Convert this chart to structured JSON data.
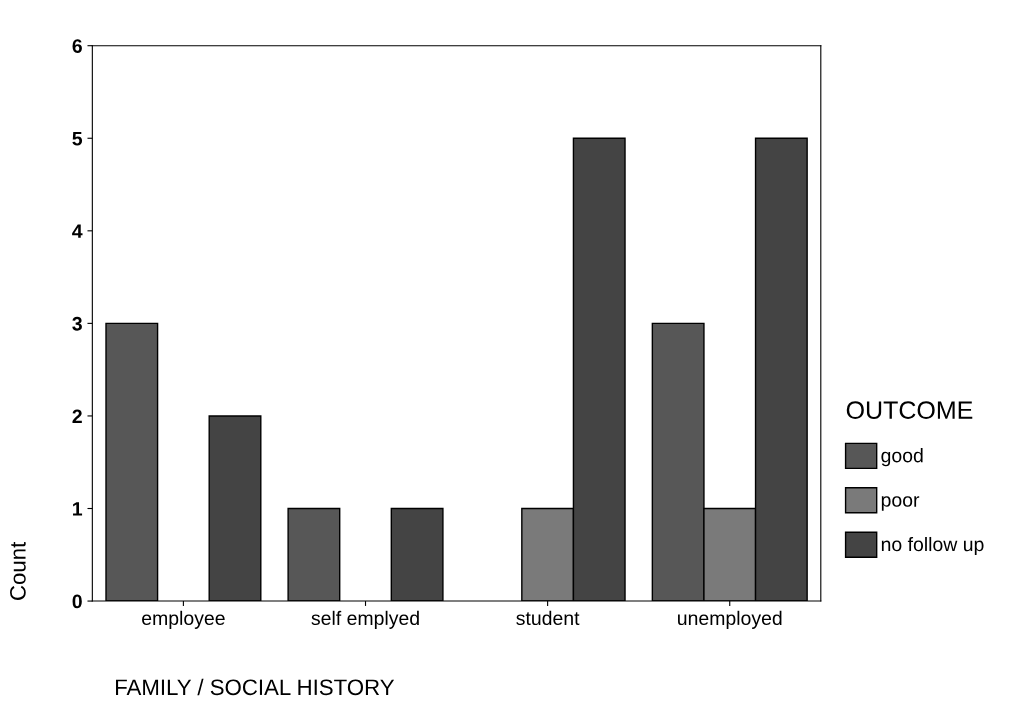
{
  "chart_data": {
    "type": "bar",
    "xlabel": "FAMILY / SOCIAL HISTORY",
    "ylabel": "Count",
    "legend_title": "OUTCOME",
    "categories": [
      "employee",
      "self emplyed",
      "student",
      "unemployed"
    ],
    "series": [
      {
        "name": "good",
        "color": "#575757",
        "values": [
          3,
          1,
          null,
          3
        ]
      },
      {
        "name": "poor",
        "color": "#7a7a7a",
        "values": [
          null,
          null,
          1,
          1
        ]
      },
      {
        "name": "no follow up",
        "color": "#444444",
        "values": [
          2,
          1,
          5,
          5
        ]
      }
    ],
    "ylim": [
      0,
      6
    ],
    "yticks": [
      0,
      1,
      2,
      3,
      4,
      5,
      6
    ],
    "grid": false,
    "legend": "right"
  }
}
